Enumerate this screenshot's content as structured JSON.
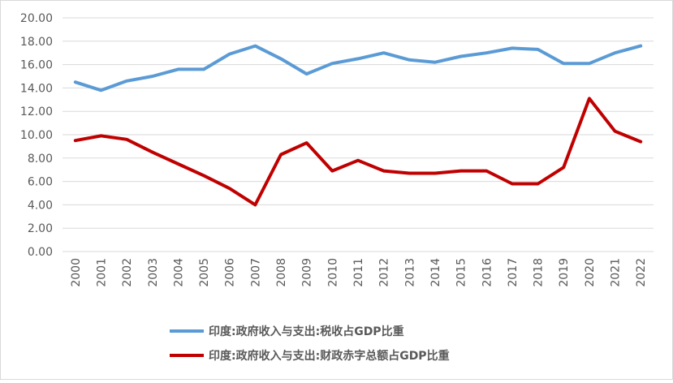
{
  "chart_data": {
    "type": "line",
    "x": [
      "2000",
      "2001",
      "2002",
      "2003",
      "2004",
      "2005",
      "2006",
      "2007",
      "2008",
      "2009",
      "2010",
      "2011",
      "2012",
      "2013",
      "2014",
      "2015",
      "2016",
      "2017",
      "2018",
      "2019",
      "2020",
      "2021",
      "2022"
    ],
    "yticks": [
      "0.00",
      "2.00",
      "4.00",
      "6.00",
      "8.00",
      "10.00",
      "12.00",
      "14.00",
      "16.00",
      "18.00",
      "20.00"
    ],
    "ylim": [
      0,
      20
    ],
    "grid": true,
    "legend_position": "bottom",
    "series": [
      {
        "name": "印度:政府收入与支出:税收占GDP比重",
        "color": "#5b9bd5",
        "values": [
          14.5,
          13.8,
          14.6,
          15.0,
          15.6,
          15.6,
          16.9,
          17.6,
          16.5,
          15.2,
          16.1,
          16.5,
          17.0,
          16.4,
          16.2,
          16.7,
          17.0,
          17.4,
          17.3,
          16.1,
          16.1,
          17.0,
          17.6
        ]
      },
      {
        "name": "印度:政府收入与支出:财政赤字总额占GDP比重",
        "color": "#c00000",
        "values": [
          9.5,
          9.9,
          9.6,
          8.5,
          7.5,
          6.5,
          5.4,
          4.0,
          8.3,
          9.3,
          6.9,
          7.8,
          6.9,
          6.7,
          6.7,
          6.9,
          6.9,
          5.8,
          5.8,
          7.2,
          13.1,
          10.3,
          9.4
        ]
      }
    ]
  }
}
